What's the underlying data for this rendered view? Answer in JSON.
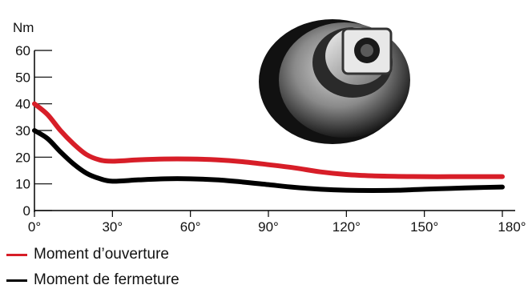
{
  "chart_data": {
    "type": "line",
    "title": "",
    "xlabel": "",
    "ylabel": "Nm",
    "xlim": [
      0,
      180
    ],
    "ylim": [
      0,
      60
    ],
    "x_ticks": [
      0,
      30,
      60,
      90,
      120,
      150,
      180
    ],
    "x_tick_labels": [
      "0°",
      "30°",
      "60°",
      "90°",
      "120°",
      "150°",
      "180°"
    ],
    "y_ticks": [
      0,
      10,
      20,
      30,
      40,
      50,
      60
    ],
    "y_tick_labels": [
      "0",
      "10",
      "20",
      "30",
      "40",
      "50",
      "60"
    ],
    "grid": false,
    "legend_position": "bottom-left",
    "series": [
      {
        "name": "Moment d’ouverture",
        "color": "#d71e28",
        "x": [
          0,
          5,
          10,
          15,
          20,
          25,
          30,
          40,
          50,
          60,
          70,
          80,
          90,
          100,
          110,
          120,
          130,
          140,
          150,
          160,
          170,
          180
        ],
        "y": [
          40,
          36,
          30,
          25,
          21,
          19,
          18.5,
          19,
          19.3,
          19.3,
          19,
          18.3,
          17.2,
          16,
          14.5,
          13.5,
          13,
          12.8,
          12.7,
          12.7,
          12.7,
          12.7
        ]
      },
      {
        "name": "Moment de fermeture",
        "color": "#000000",
        "x": [
          0,
          5,
          10,
          15,
          20,
          25,
          30,
          40,
          50,
          60,
          70,
          80,
          90,
          100,
          110,
          120,
          130,
          140,
          150,
          160,
          170,
          180
        ],
        "y": [
          30,
          27,
          22,
          17.5,
          14,
          12,
          11,
          11.5,
          11.9,
          11.9,
          11.5,
          10.7,
          9.7,
          8.7,
          8,
          7.6,
          7.5,
          7.6,
          8,
          8.3,
          8.6,
          8.8
        ]
      }
    ]
  },
  "legend": {
    "item1_label": "Moment d’ouverture",
    "item2_label": "Moment de fermeture"
  },
  "photo": {
    "icon": "valve-handle-photo-icon"
  }
}
